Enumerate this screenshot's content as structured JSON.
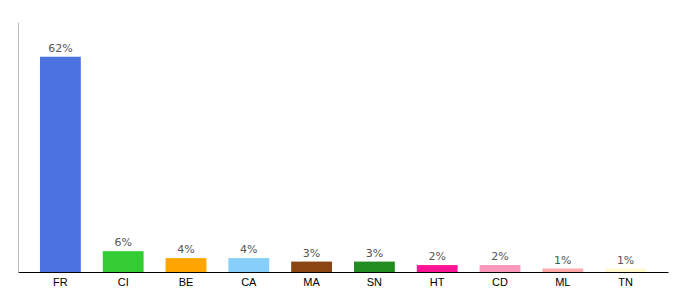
{
  "chart_data": {
    "type": "bar",
    "categories": [
      "FR",
      "CI",
      "BE",
      "CA",
      "MA",
      "SN",
      "HT",
      "CD",
      "ML",
      "TN"
    ],
    "values": [
      62,
      6,
      4,
      4,
      3,
      3,
      2,
      2,
      1,
      1
    ],
    "value_labels": [
      "62%",
      "6%",
      "4%",
      "4%",
      "3%",
      "3%",
      "2%",
      "2%",
      "1%",
      "1%"
    ],
    "colors": [
      "#4C72E0",
      "#33CC33",
      "#FFA500",
      "#87CEFA",
      "#8B4513",
      "#228B22",
      "#FF1493",
      "#FF99BB",
      "#FFAAAA",
      "#FFFACD"
    ],
    "ylim": [
      0,
      72
    ],
    "data_labels": true,
    "tick_labels": "x",
    "grid": false
  }
}
